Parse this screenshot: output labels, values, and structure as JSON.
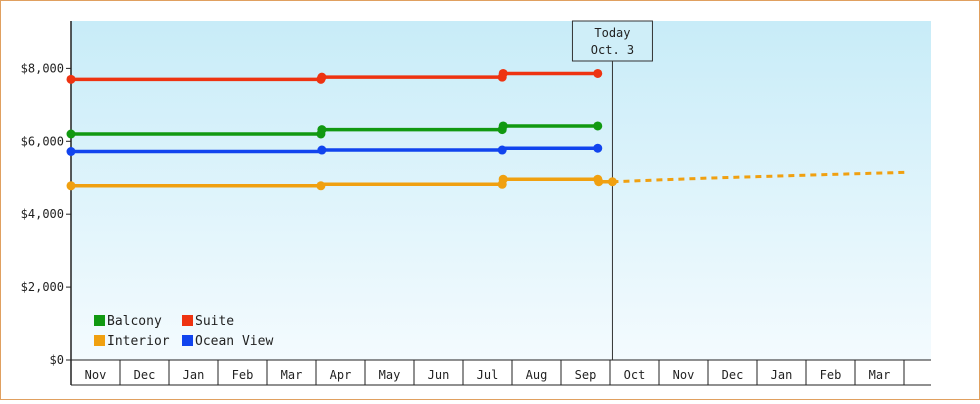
{
  "chart_data": {
    "type": "line",
    "ylim": [
      0,
      9300
    ],
    "y_ticks": [
      "$0",
      "$2,000",
      "$4,000",
      "$6,000",
      "$8,000"
    ],
    "y_tick_values": [
      0,
      2000,
      4000,
      6000,
      8000
    ],
    "months": [
      "Nov",
      "Dec",
      "Jan",
      "Feb",
      "Mar",
      "Apr",
      "May",
      "Jun",
      "Jul",
      "Aug",
      "Sep",
      "Oct",
      "Nov",
      "Dec",
      "Jan",
      "Feb",
      "Mar"
    ],
    "today_label": [
      "Today",
      "Oct. 3"
    ],
    "today_month_index": 11.05,
    "grid": false,
    "legend_placement": "bottom-left",
    "series": [
      {
        "name": "Suite",
        "color": "#ee3311",
        "points": [
          [
            0,
            7700
          ],
          [
            5.1,
            7700
          ],
          [
            5.12,
            7760
          ],
          [
            8.8,
            7760
          ],
          [
            8.82,
            7860
          ],
          [
            10.75,
            7860
          ]
        ],
        "markers": [
          0,
          5.1,
          5.12,
          8.8,
          8.82,
          10.75
        ]
      },
      {
        "name": "Balcony",
        "color": "#119911",
        "points": [
          [
            0,
            6200
          ],
          [
            5.1,
            6200
          ],
          [
            5.12,
            6320
          ],
          [
            8.8,
            6320
          ],
          [
            8.82,
            6420
          ],
          [
            10.75,
            6420
          ]
        ],
        "markers": [
          0,
          5.1,
          5.12,
          8.8,
          8.82,
          10.75
        ]
      },
      {
        "name": "Ocean View",
        "color": "#1144ee",
        "points": [
          [
            0,
            5720
          ],
          [
            5.1,
            5720
          ],
          [
            5.12,
            5760
          ],
          [
            8.8,
            5760
          ],
          [
            8.82,
            5810
          ],
          [
            10.75,
            5810
          ]
        ],
        "markers": [
          0,
          5.12,
          8.8,
          10.75
        ]
      },
      {
        "name": "Interior",
        "color": "#f0a010",
        "points": [
          [
            0,
            4780
          ],
          [
            5.1,
            4780
          ],
          [
            5.12,
            4820
          ],
          [
            8.8,
            4820
          ],
          [
            8.82,
            4960
          ],
          [
            10.75,
            4960
          ],
          [
            10.77,
            4890
          ],
          [
            11.05,
            4890
          ]
        ],
        "markers": [
          0,
          5.1,
          8.8,
          8.82,
          10.75,
          10.77,
          11.05
        ],
        "forecast": [
          [
            11.05,
            4890
          ],
          [
            12.0,
            4940
          ],
          [
            13.0,
            4990
          ],
          [
            14.0,
            5030
          ],
          [
            15.0,
            5070
          ],
          [
            16.0,
            5110
          ],
          [
            17.1,
            5150
          ]
        ]
      }
    ],
    "legend": [
      {
        "name": "Balcony",
        "color": "#119911"
      },
      {
        "name": "Suite",
        "color": "#ee3311"
      },
      {
        "name": "Interior",
        "color": "#f0a010"
      },
      {
        "name": "Ocean View",
        "color": "#1144ee"
      }
    ]
  }
}
